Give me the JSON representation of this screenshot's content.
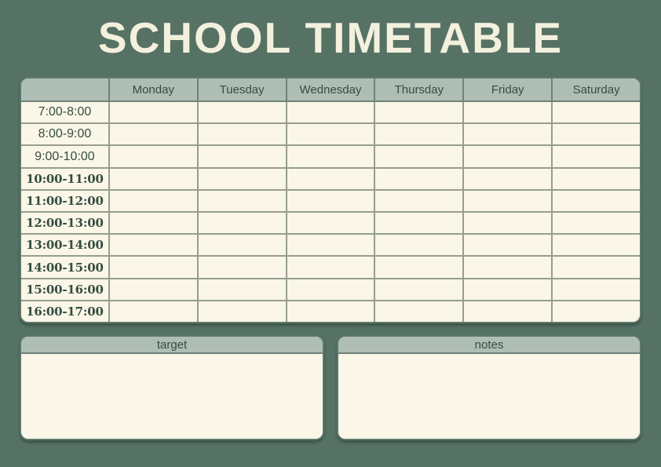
{
  "title": "SCHOOL TIMETABLE",
  "table": {
    "days": [
      "Monday",
      "Tuesday",
      "Wednesday",
      "Thursday",
      "Friday",
      "Saturday"
    ],
    "time_slots": [
      "7:00-8:00",
      "8:00-9:00",
      "9:00-10:00",
      "10:00-11:00",
      "11:00-12:00",
      "12:00-13:00",
      "13:00-14:00",
      "14:00-15:00",
      "15:00-16:00",
      "16:00-17:00"
    ]
  },
  "panels": {
    "target_label": "target",
    "notes_label": "notes"
  },
  "colors": {
    "background": "#567265",
    "header_bar": "#AFBEB4",
    "cell_cream": "#FAF6E8",
    "text_dark_green": "#344E40",
    "title_cream": "#F4F0DE",
    "grid_line": "#6F8277",
    "outer_border": "#5E7A6B"
  }
}
